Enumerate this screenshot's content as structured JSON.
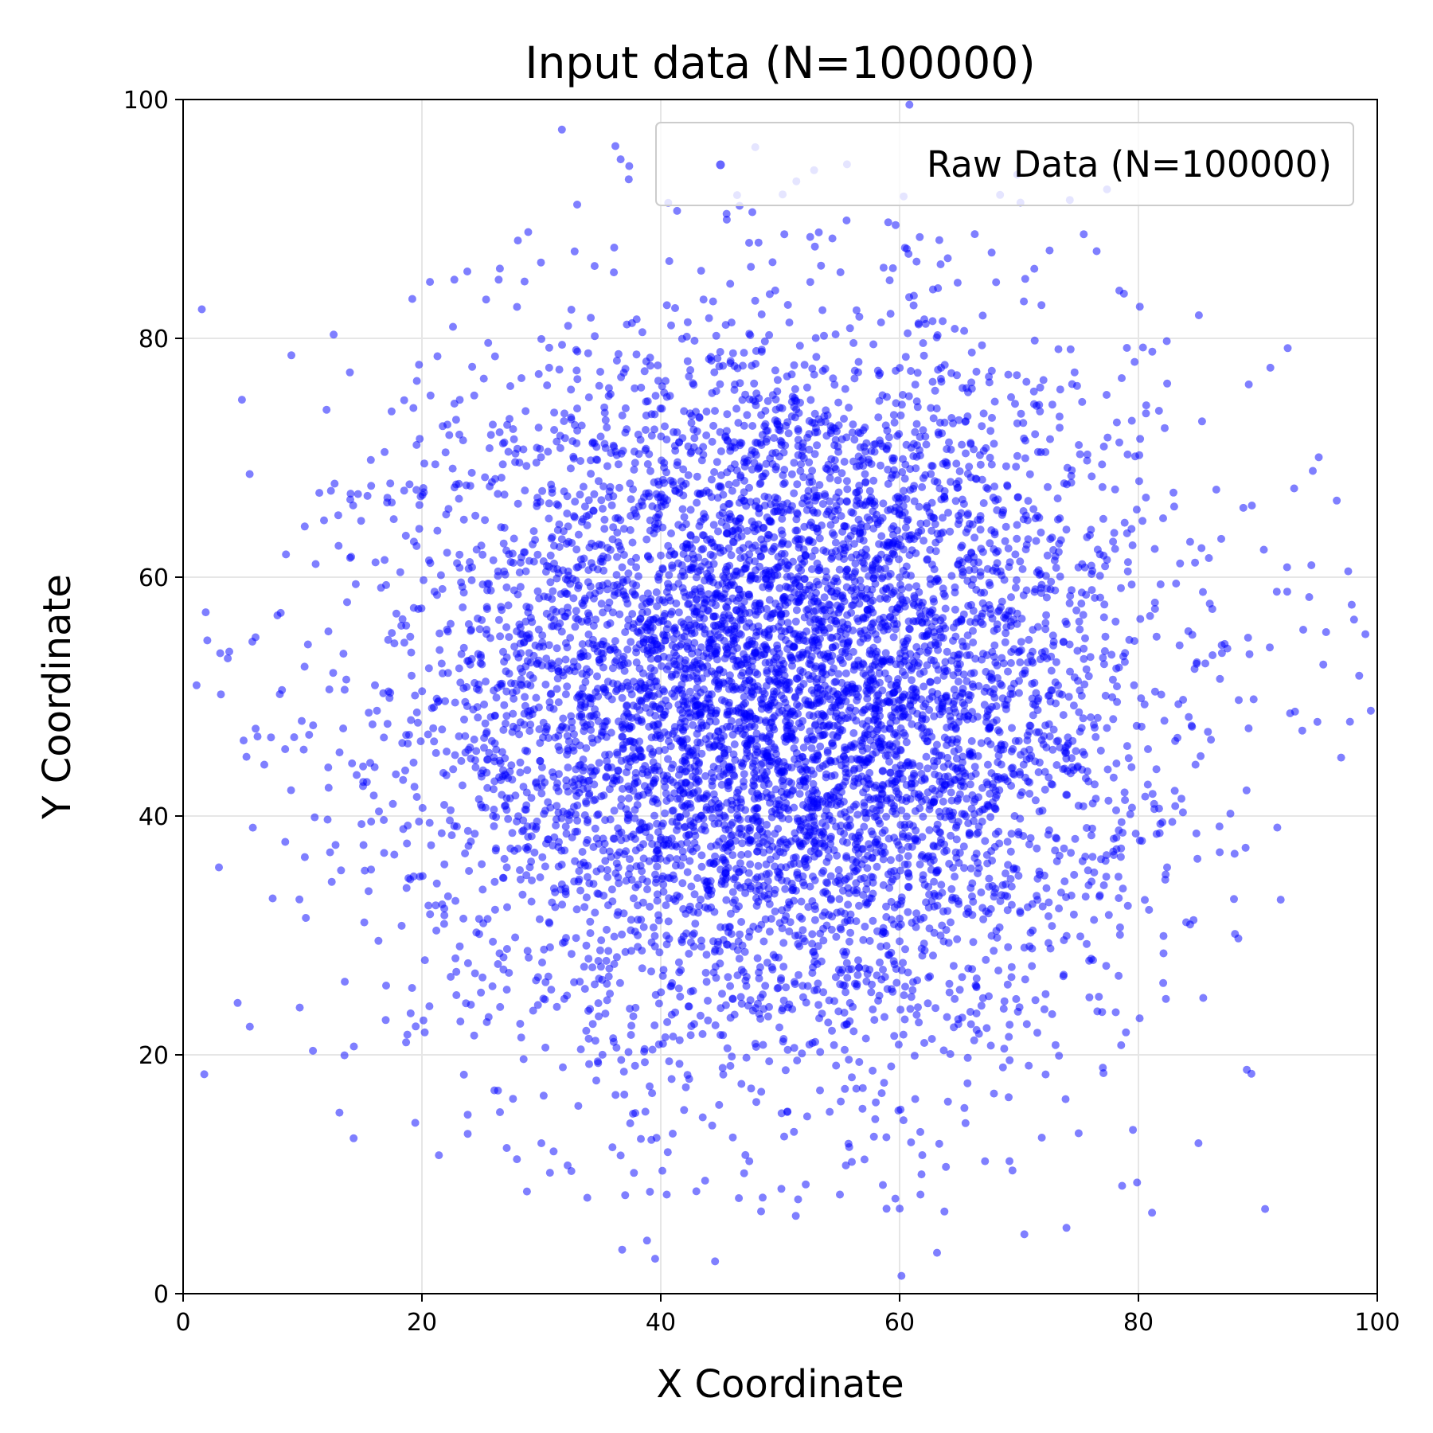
{
  "chart_data": {
    "type": "scatter",
    "title": "Input data (N=100000)",
    "xlabel": "X Coordinate",
    "ylabel": "Y Coordinate",
    "xlim": [
      0,
      100
    ],
    "ylim": [
      0,
      100
    ],
    "xticks": [
      "0",
      "20",
      "40",
      "60",
      "80",
      "100"
    ],
    "yticks": [
      "0",
      "20",
      "40",
      "60",
      "80",
      "100"
    ],
    "grid": true,
    "legend_position": "top-right",
    "series": [
      {
        "name": "Raw Data (N=100000)",
        "color": "#0000ff",
        "distribution": "gaussian",
        "center": [
          50,
          50
        ],
        "std": [
          15,
          15
        ],
        "n": 100000,
        "outliers": [
          [
            3,
            35.7
          ],
          [
            5.8,
            54.6
          ],
          [
            6.8,
            44.3
          ],
          [
            7.5,
            33.1
          ],
          [
            7.9,
            56.8
          ],
          [
            8.1,
            50.2
          ],
          [
            9.3,
            46.6
          ],
          [
            11.1,
            61.1
          ],
          [
            12.1,
            39.7
          ],
          [
            14.3,
            20.7
          ],
          [
            14.0,
            66.5
          ],
          [
            17.0,
            25.8
          ],
          [
            21.3,
            78.5
          ],
          [
            23.8,
            85.6
          ],
          [
            28.9,
            88.9
          ],
          [
            27.1,
            12.2
          ],
          [
            30.0,
            12.6
          ],
          [
            36.2,
            96.1
          ],
          [
            36.1,
            87.6
          ],
          [
            40.5,
            8.3
          ],
          [
            41.0,
            13.4
          ],
          [
            46.6,
            91.1
          ],
          [
            47.4,
            88.0
          ],
          [
            51.5,
            7.9
          ],
          [
            55.0,
            8.3
          ],
          [
            58.6,
            9.1
          ],
          [
            60.6,
            87.5
          ],
          [
            61.9,
            11.6
          ],
          [
            69.2,
            11.1
          ],
          [
            76.5,
            87.3
          ],
          [
            78.4,
            84.0
          ],
          [
            85.9,
            61.6
          ],
          [
            87.7,
            40.2
          ],
          [
            89.5,
            66.0
          ],
          [
            90.5,
            62.3
          ],
          [
            92.7,
            48.6
          ],
          [
            93.8,
            55.6
          ],
          [
            94.6,
            68.9
          ],
          [
            84.0,
            31.1
          ],
          [
            82.1,
            28.5
          ]
        ]
      }
    ]
  }
}
